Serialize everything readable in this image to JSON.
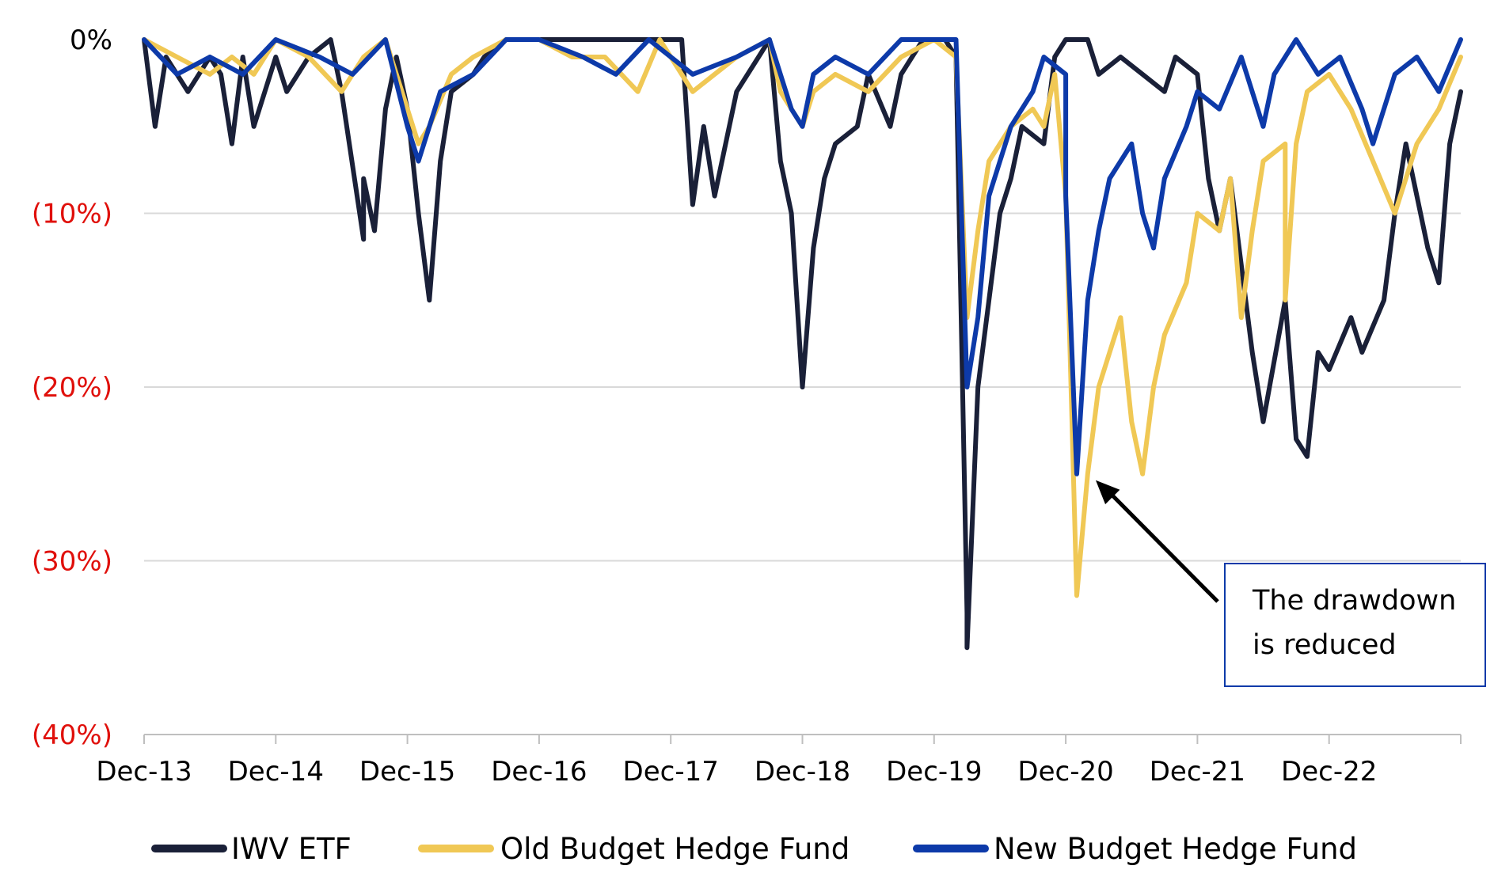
{
  "chart_data": {
    "type": "line",
    "title": "",
    "xlabel": "",
    "ylabel": "",
    "x_ticks": [
      "Dec-13",
      "Dec-14",
      "Dec-15",
      "Dec-16",
      "Dec-17",
      "Dec-18",
      "Dec-19",
      "Dec-20",
      "Dec-21",
      "Dec-22"
    ],
    "y_ticks": [
      "0%",
      "(10%)",
      "(20%)",
      "(30%)",
      "(40%)"
    ],
    "ylim": [
      -40,
      0
    ],
    "xlim": [
      "Dec-13",
      "Dec-23"
    ],
    "grid": true,
    "legend_position": "bottom",
    "annotation": {
      "text_lines": [
        "The drawdown",
        "is reduced"
      ],
      "points_to": {
        "x": "Jan-21",
        "y": -25
      }
    },
    "colors": {
      "negative_tick": "#e0100b",
      "zero_tick": "#000000",
      "gridline": "#d9d9d9",
      "axis": "#bfbfbf"
    },
    "series": [
      {
        "name": "IWV ETF",
        "color": "#1a2038",
        "points": [
          [
            "Dec-13",
            0
          ],
          [
            "Jan-14",
            -5
          ],
          [
            "Feb-14",
            -1
          ],
          [
            "Apr-14",
            -3
          ],
          [
            "Jun-14",
            -1
          ],
          [
            "Jul-14",
            -2
          ],
          [
            "Aug-14",
            -6
          ],
          [
            "Sep-14",
            -1
          ],
          [
            "Oct-14",
            -5
          ],
          [
            "Dec-14",
            -1
          ],
          [
            "Jan-15",
            -3
          ],
          [
            "Mar-15",
            -1
          ],
          [
            "May-15",
            0
          ],
          [
            "Jun-15",
            -3
          ],
          [
            "Aug-15",
            -11.5
          ],
          [
            "Aug-15",
            -8
          ],
          [
            "Sep-15",
            -11
          ],
          [
            "Oct-15",
            -4
          ],
          [
            "Nov-15",
            -1
          ],
          [
            "Dec-15",
            -4
          ],
          [
            "Jan-16",
            -10
          ],
          [
            "Feb-16",
            -15
          ],
          [
            "Mar-16",
            -7
          ],
          [
            "Apr-16",
            -3
          ],
          [
            "Jun-16",
            -2
          ],
          [
            "Jul-16",
            -1
          ],
          [
            "Sep-16",
            0
          ],
          [
            "Dec-16",
            0
          ],
          [
            "Mar-17",
            0
          ],
          [
            "Jun-17",
            0
          ],
          [
            "Sep-17",
            0
          ],
          [
            "Nov-17",
            0
          ],
          [
            "Jan-18",
            0
          ],
          [
            "Feb-18",
            -9.5
          ],
          [
            "Mar-18",
            -5
          ],
          [
            "Apr-18",
            -9
          ],
          [
            "Jun-18",
            -3
          ],
          [
            "Aug-18",
            -1
          ],
          [
            "Sep-18",
            0
          ],
          [
            "Oct-18",
            -7
          ],
          [
            "Nov-18",
            -10
          ],
          [
            "Dec-18",
            -20
          ],
          [
            "Jan-19",
            -12
          ],
          [
            "Feb-19",
            -8
          ],
          [
            "Mar-19",
            -6
          ],
          [
            "May-19",
            -5
          ],
          [
            "Jun-19",
            -2
          ],
          [
            "Aug-19",
            -5
          ],
          [
            "Sep-19",
            -2
          ],
          [
            "Nov-19",
            0
          ],
          [
            "Jan-20",
            0
          ],
          [
            "Feb-20",
            -1
          ],
          [
            "Mar-20",
            -33
          ],
          [
            "Mar-20",
            -35
          ],
          [
            "Apr-20",
            -20
          ],
          [
            "May-20",
            -15
          ],
          [
            "Jun-20",
            -10
          ],
          [
            "Jul-20",
            -8
          ],
          [
            "Aug-20",
            -5
          ],
          [
            "Oct-20",
            -6
          ],
          [
            "Nov-20",
            -1
          ],
          [
            "Dec-20",
            0
          ],
          [
            "Feb-21",
            0
          ],
          [
            "Mar-21",
            -2
          ],
          [
            "May-21",
            -1
          ],
          [
            "Jul-21",
            -2
          ],
          [
            "Sep-21",
            -3
          ],
          [
            "Oct-21",
            -1
          ],
          [
            "Dec-21",
            -2
          ],
          [
            "Jan-22",
            -8
          ],
          [
            "Feb-22",
            -11
          ],
          [
            "Mar-22",
            -8
          ],
          [
            "May-22",
            -18
          ],
          [
            "Jun-22",
            -22
          ],
          [
            "Aug-22",
            -15
          ],
          [
            "Sep-22",
            -23
          ],
          [
            "Oct-22",
            -24
          ],
          [
            "Nov-22",
            -18
          ],
          [
            "Dec-22",
            -19
          ],
          [
            "Feb-23",
            -16
          ],
          [
            "Mar-23",
            -18
          ],
          [
            "May-23",
            -15
          ],
          [
            "Jun-23",
            -10
          ],
          [
            "Jul-23",
            -6
          ],
          [
            "Aug-23",
            -9
          ],
          [
            "Sep-23",
            -12
          ],
          [
            "Oct-23",
            -14
          ],
          [
            "Nov-23",
            -6
          ],
          [
            "Dec-23",
            -3
          ]
        ]
      },
      {
        "name": "Old Budget Hedge Fund",
        "color": "#f0c855",
        "points": [
          [
            "Dec-13",
            0
          ],
          [
            "Mar-14",
            -1
          ],
          [
            "Jun-14",
            -2
          ],
          [
            "Aug-14",
            -1
          ],
          [
            "Oct-14",
            -2
          ],
          [
            "Dec-14",
            0
          ],
          [
            "Mar-15",
            -1
          ],
          [
            "Jun-15",
            -3
          ],
          [
            "Aug-15",
            -1
          ],
          [
            "Oct-15",
            0
          ],
          [
            "Dec-15",
            -4
          ],
          [
            "Jan-16",
            -6
          ],
          [
            "Feb-16",
            -5
          ],
          [
            "Apr-16",
            -2
          ],
          [
            "Jun-16",
            -1
          ],
          [
            "Sep-16",
            0
          ],
          [
            "Dec-16",
            0
          ],
          [
            "Mar-17",
            -1
          ],
          [
            "Jun-17",
            -1
          ],
          [
            "Sep-17",
            -3
          ],
          [
            "Nov-17",
            0
          ],
          [
            "Feb-18",
            -3
          ],
          [
            "Apr-18",
            -2
          ],
          [
            "Jun-18",
            -1
          ],
          [
            "Sep-18",
            0
          ],
          [
            "Oct-18",
            -3
          ],
          [
            "Dec-18",
            -5
          ],
          [
            "Jan-19",
            -3
          ],
          [
            "Mar-19",
            -2
          ],
          [
            "Jun-19",
            -3
          ],
          [
            "Sep-19",
            -1
          ],
          [
            "Dec-19",
            0
          ],
          [
            "Feb-20",
            -1
          ],
          [
            "Mar-20",
            -16
          ],
          [
            "Apr-20",
            -11
          ],
          [
            "May-20",
            -7
          ],
          [
            "Jul-20",
            -5
          ],
          [
            "Sep-20",
            -4
          ],
          [
            "Oct-20",
            -5
          ],
          [
            "Nov-20",
            -2
          ],
          [
            "Dec-20",
            -9
          ],
          [
            "Jan-21",
            -32
          ],
          [
            "Feb-21",
            -25
          ],
          [
            "Mar-21",
            -20
          ],
          [
            "May-21",
            -16
          ],
          [
            "Jun-21",
            -22
          ],
          [
            "Jul-21",
            -25
          ],
          [
            "Aug-21",
            -20
          ],
          [
            "Sep-21",
            -17
          ],
          [
            "Nov-21",
            -14
          ],
          [
            "Dec-21",
            -10
          ],
          [
            "Feb-22",
            -11
          ],
          [
            "Mar-22",
            -8
          ],
          [
            "Apr-22",
            -16
          ],
          [
            "May-22",
            -11
          ],
          [
            "Jun-22",
            -7
          ],
          [
            "Aug-22",
            -6
          ],
          [
            "Aug-22",
            -15
          ],
          [
            "Sep-22",
            -6
          ],
          [
            "Oct-22",
            -3
          ],
          [
            "Dec-22",
            -2
          ],
          [
            "Feb-23",
            -4
          ],
          [
            "Apr-23",
            -7
          ],
          [
            "Jun-23",
            -10
          ],
          [
            "Aug-23",
            -6
          ],
          [
            "Oct-23",
            -4
          ],
          [
            "Dec-23",
            -1
          ]
        ]
      },
      {
        "name": "New Budget Hedge Fund",
        "color": "#0d3aa9",
        "points": [
          [
            "Dec-13",
            0
          ],
          [
            "Mar-14",
            -2
          ],
          [
            "Jun-14",
            -1
          ],
          [
            "Sep-14",
            -2
          ],
          [
            "Dec-14",
            0
          ],
          [
            "Apr-15",
            -1
          ],
          [
            "Jul-15",
            -2
          ],
          [
            "Oct-15",
            0
          ],
          [
            "Dec-15",
            -5
          ],
          [
            "Jan-16",
            -7
          ],
          [
            "Mar-16",
            -3
          ],
          [
            "Jun-16",
            -2
          ],
          [
            "Sep-16",
            0
          ],
          [
            "Dec-16",
            0
          ],
          [
            "Apr-17",
            -1
          ],
          [
            "Jul-17",
            -2
          ],
          [
            "Oct-17",
            0
          ],
          [
            "Feb-18",
            -2
          ],
          [
            "Jun-18",
            -1
          ],
          [
            "Sep-18",
            0
          ],
          [
            "Nov-18",
            -4
          ],
          [
            "Dec-18",
            -5
          ],
          [
            "Jan-19",
            -2
          ],
          [
            "Mar-19",
            -1
          ],
          [
            "Jun-19",
            -2
          ],
          [
            "Sep-19",
            0
          ],
          [
            "Dec-19",
            0
          ],
          [
            "Feb-20",
            0
          ],
          [
            "Mar-20",
            -20
          ],
          [
            "Apr-20",
            -16
          ],
          [
            "May-20",
            -9
          ],
          [
            "Jul-20",
            -5
          ],
          [
            "Sep-20",
            -3
          ],
          [
            "Oct-20",
            -1
          ],
          [
            "Dec-20",
            -2
          ],
          [
            "Dec-20",
            -9
          ],
          [
            "Jan-21",
            -25
          ],
          [
            "Feb-21",
            -15
          ],
          [
            "Mar-21",
            -11
          ],
          [
            "Apr-21",
            -8
          ],
          [
            "Jun-21",
            -6
          ],
          [
            "Jul-21",
            -10
          ],
          [
            "Aug-21",
            -12
          ],
          [
            "Sep-21",
            -8
          ],
          [
            "Nov-21",
            -5
          ],
          [
            "Dec-21",
            -3
          ],
          [
            "Feb-22",
            -4
          ],
          [
            "Apr-22",
            -1
          ],
          [
            "Jun-22",
            -5
          ],
          [
            "Jul-22",
            -2
          ],
          [
            "Sep-22",
            0
          ],
          [
            "Nov-22",
            -2
          ],
          [
            "Jan-23",
            -1
          ],
          [
            "Mar-23",
            -4
          ],
          [
            "Apr-23",
            -6
          ],
          [
            "Jun-23",
            -2
          ],
          [
            "Aug-23",
            -1
          ],
          [
            "Oct-23",
            -3
          ],
          [
            "Dec-23",
            0
          ]
        ]
      }
    ]
  }
}
